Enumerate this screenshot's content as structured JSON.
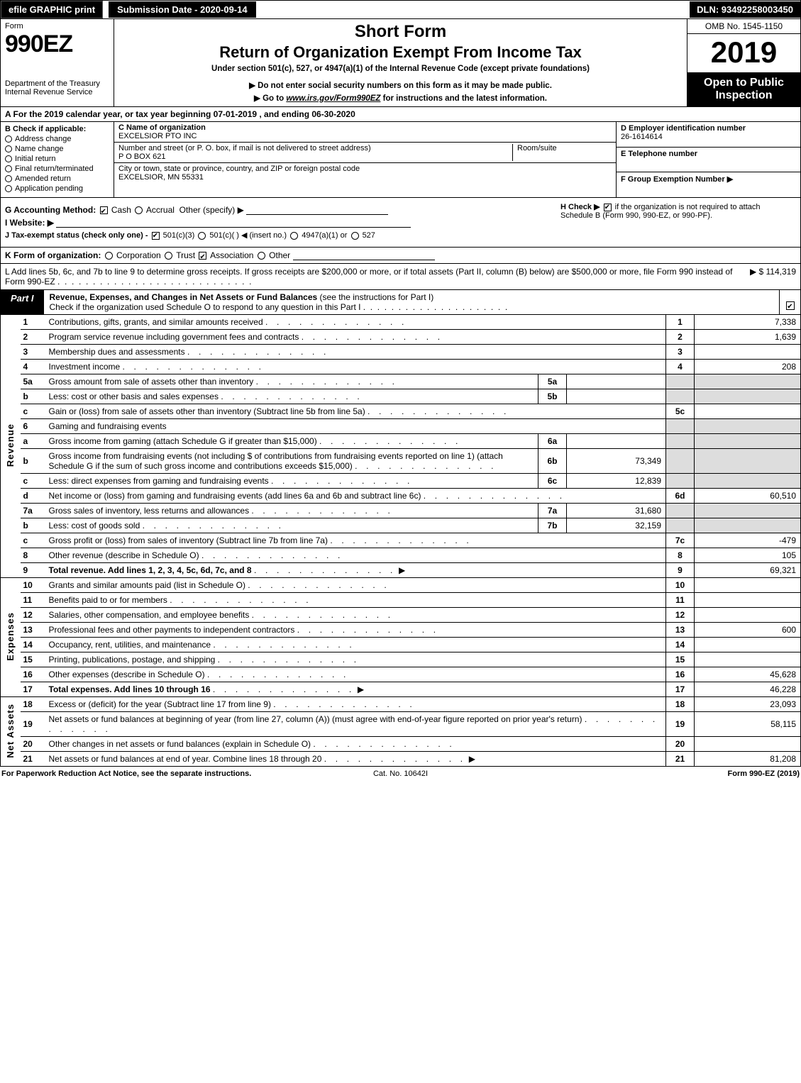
{
  "topbar": {
    "efile": "efile GRAPHIC print",
    "sub_date_label": "Submission Date - 2020-09-14",
    "dln": "DLN: 93492258003450"
  },
  "header": {
    "form_word": "Form",
    "form_no": "990EZ",
    "dept1": "Department of the Treasury",
    "dept2": "Internal Revenue Service",
    "short": "Short Form",
    "title": "Return of Organization Exempt From Income Tax",
    "under": "Under section 501(c), 527, or 4947(a)(1) of the Internal Revenue Code (except private foundations)",
    "warn": "▶ Do not enter social security numbers on this form as it may be made public.",
    "goto_pre": "▶ Go to ",
    "goto_link": "www.irs.gov/Form990EZ",
    "goto_post": " for instructions and the latest information.",
    "omb": "OMB No. 1545-1150",
    "year": "2019",
    "open": "Open to Public Inspection"
  },
  "taxyear": "A  For the 2019 calendar year, or tax year beginning 07-01-2019 , and ending 06-30-2020",
  "sectionB": {
    "label": "B  Check if applicable:",
    "items": [
      "Address change",
      "Name change",
      "Initial return",
      "Final return/terminated",
      "Amended return",
      "Application pending"
    ]
  },
  "sectionC": {
    "name_label": "C Name of organization",
    "name": "EXCELSIOR PTO INC",
    "street_label": "Number and street (or P. O. box, if mail is not delivered to street address)",
    "street": "P O BOX 621",
    "suite_label": "Room/suite",
    "city_label": "City or town, state or province, country, and ZIP or foreign postal code",
    "city": "EXCELSIOR, MN  55331"
  },
  "sectionDEF": {
    "d_label": "D Employer identification number",
    "d_val": "26-1614614",
    "e_label": "E Telephone number",
    "e_val": "",
    "f_label": "F Group Exemption Number  ▶",
    "f_val": ""
  },
  "rowG": {
    "g": "G Accounting Method:",
    "cash": "Cash",
    "accrual": "Accrual",
    "other": "Other (specify) ▶",
    "h_pre": "H  Check ▶",
    "h_post": "if the organization is not required to attach Schedule B (Form 990, 990-EZ, or 990-PF).",
    "i": "I Website: ▶",
    "j_pre": "J Tax-exempt status (check only one) - ",
    "j_501c3": "501(c)(3)",
    "j_501c": "501(c)(  ) ◀ (insert no.)",
    "j_4947": "4947(a)(1) or",
    "j_527": "527"
  },
  "rowK": {
    "k": "K Form of organization:",
    "opts": [
      "Corporation",
      "Trust",
      "Association",
      "Other"
    ],
    "checked_idx": 2
  },
  "rowL": {
    "text": "L Add lines 5b, 6c, and 7b to line 9 to determine gross receipts. If gross receipts are $200,000 or more, or if total assets (Part II, column (B) below) are $500,000 or more, file Form 990 instead of Form 990-EZ",
    "val": "▶  $ 114,319"
  },
  "part1": {
    "tab": "Part I",
    "title": "Revenue, Expenses, and Changes in Net Assets or Fund Balances",
    "sub": "(see the instructions for Part I)",
    "line2": "Check if the organization used Schedule O to respond to any question in this Part I",
    "checked": true
  },
  "sections": {
    "revenue": "Revenue",
    "expenses": "Expenses",
    "netassets": "Net Assets"
  },
  "lines": [
    {
      "n": "1",
      "d": "Contributions, gifts, grants, and similar amounts received",
      "r": "1",
      "v": "7,338"
    },
    {
      "n": "2",
      "d": "Program service revenue including government fees and contracts",
      "r": "2",
      "v": "1,639"
    },
    {
      "n": "3",
      "d": "Membership dues and assessments",
      "r": "3",
      "v": ""
    },
    {
      "n": "4",
      "d": "Investment income",
      "r": "4",
      "v": "208"
    },
    {
      "n": "5a",
      "d": "Gross amount from sale of assets other than inventory",
      "sn": "5a",
      "sv": ""
    },
    {
      "n": "b",
      "d": "Less: cost or other basis and sales expenses",
      "sn": "5b",
      "sv": ""
    },
    {
      "n": "c",
      "d": "Gain or (loss) from sale of assets other than inventory (Subtract line 5b from line 5a)",
      "r": "5c",
      "v": ""
    },
    {
      "n": "6",
      "d": "Gaming and fundraising events"
    },
    {
      "n": "a",
      "d": "Gross income from gaming (attach Schedule G if greater than $15,000)",
      "sn": "6a",
      "sv": ""
    },
    {
      "n": "b",
      "d": "Gross income from fundraising events (not including $                           of contributions from fundraising events reported on line 1) (attach Schedule G if the sum of such gross income and contributions exceeds $15,000)",
      "sn": "6b",
      "sv": "73,349"
    },
    {
      "n": "c",
      "d": "Less: direct expenses from gaming and fundraising events",
      "sn": "6c",
      "sv": "12,839"
    },
    {
      "n": "d",
      "d": "Net income or (loss) from gaming and fundraising events (add lines 6a and 6b and subtract line 6c)",
      "r": "6d",
      "v": "60,510"
    },
    {
      "n": "7a",
      "d": "Gross sales of inventory, less returns and allowances",
      "sn": "7a",
      "sv": "31,680"
    },
    {
      "n": "b",
      "d": "Less: cost of goods sold",
      "sn": "7b",
      "sv": "32,159"
    },
    {
      "n": "c",
      "d": "Gross profit or (loss) from sales of inventory (Subtract line 7b from line 7a)",
      "r": "7c",
      "v": "-479"
    },
    {
      "n": "8",
      "d": "Other revenue (describe in Schedule O)",
      "r": "8",
      "v": "105"
    },
    {
      "n": "9",
      "d": "Total revenue. Add lines 1, 2, 3, 4, 5c, 6d, 7c, and 8",
      "r": "9",
      "v": "69,321",
      "bold": true,
      "arrow": true
    }
  ],
  "exp_lines": [
    {
      "n": "10",
      "d": "Grants and similar amounts paid (list in Schedule O)",
      "r": "10",
      "v": ""
    },
    {
      "n": "11",
      "d": "Benefits paid to or for members",
      "r": "11",
      "v": ""
    },
    {
      "n": "12",
      "d": "Salaries, other compensation, and employee benefits",
      "r": "12",
      "v": ""
    },
    {
      "n": "13",
      "d": "Professional fees and other payments to independent contractors",
      "r": "13",
      "v": "600"
    },
    {
      "n": "14",
      "d": "Occupancy, rent, utilities, and maintenance",
      "r": "14",
      "v": ""
    },
    {
      "n": "15",
      "d": "Printing, publications, postage, and shipping",
      "r": "15",
      "v": ""
    },
    {
      "n": "16",
      "d": "Other expenses (describe in Schedule O)",
      "r": "16",
      "v": "45,628"
    },
    {
      "n": "17",
      "d": "Total expenses. Add lines 10 through 16",
      "r": "17",
      "v": "46,228",
      "bold": true,
      "arrow": true
    }
  ],
  "na_lines": [
    {
      "n": "18",
      "d": "Excess or (deficit) for the year (Subtract line 17 from line 9)",
      "r": "18",
      "v": "23,093"
    },
    {
      "n": "19",
      "d": "Net assets or fund balances at beginning of year (from line 27, column (A)) (must agree with end-of-year figure reported on prior year's return)",
      "r": "19",
      "v": "58,115"
    },
    {
      "n": "20",
      "d": "Other changes in net assets or fund balances (explain in Schedule O)",
      "r": "20",
      "v": ""
    },
    {
      "n": "21",
      "d": "Net assets or fund balances at end of year. Combine lines 18 through 20",
      "r": "21",
      "v": "81,208",
      "arrow": true
    }
  ],
  "footer": {
    "l": "For Paperwork Reduction Act Notice, see the separate instructions.",
    "c": "Cat. No. 10642I",
    "r": "Form 990-EZ (2019)"
  }
}
